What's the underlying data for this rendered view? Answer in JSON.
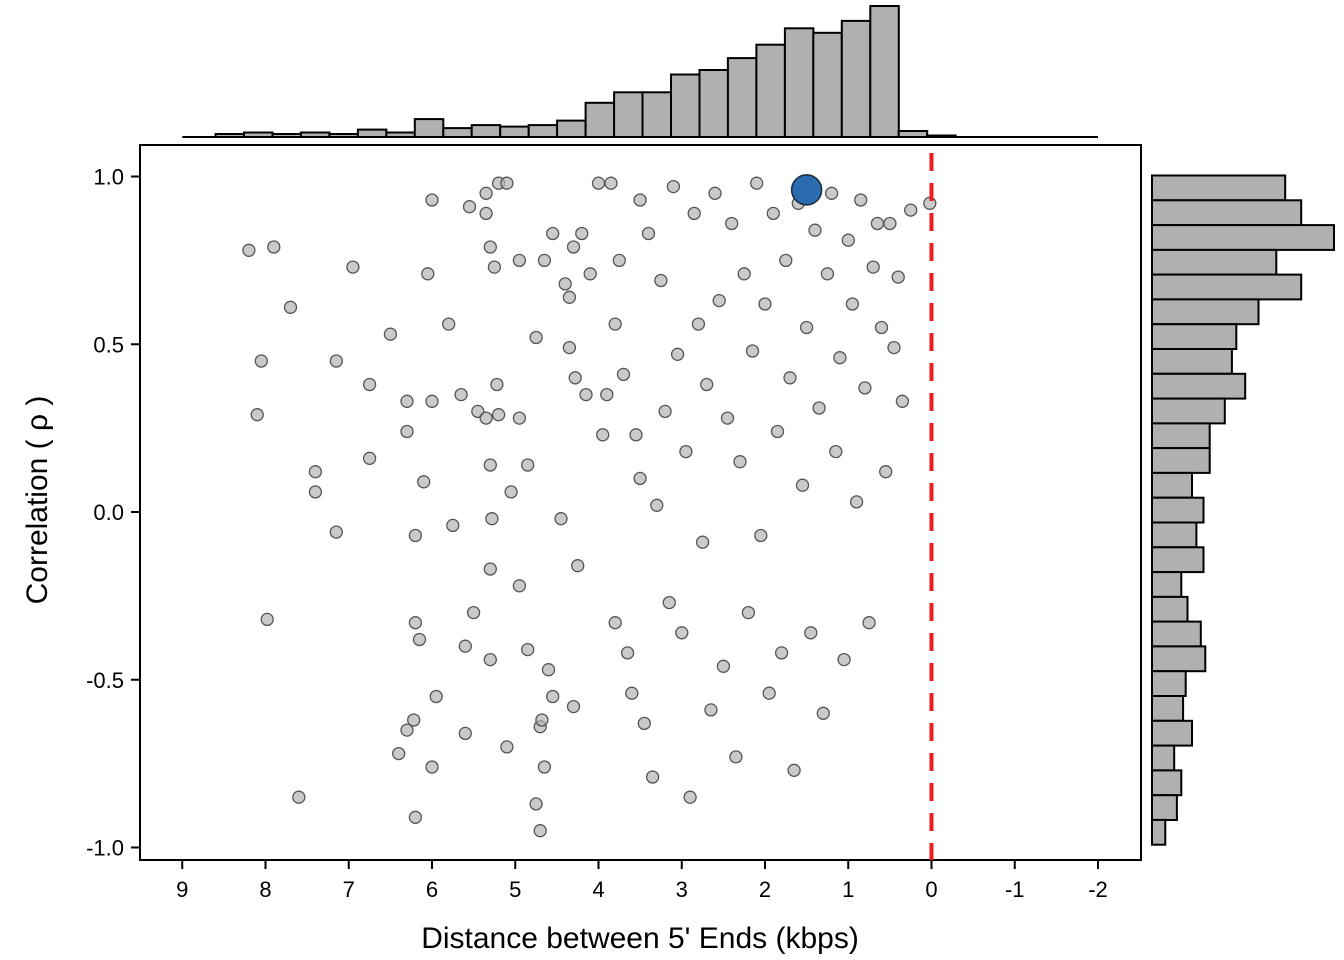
{
  "chart_data": {
    "type": "scatter",
    "title": "",
    "xlabel": "Distance between 5' Ends (kbps)",
    "ylabel": "Correlation ( ρ )",
    "xlim": [
      9.5,
      -2.5
    ],
    "ylim": [
      -1.04,
      1.1
    ],
    "x_reversed": true,
    "x_ticks": [
      9,
      8,
      7,
      6,
      5,
      4,
      3,
      2,
      1,
      0,
      -1,
      -2
    ],
    "x_tick_labels": [
      "9",
      "8",
      "7",
      "6",
      "5",
      "4",
      "3",
      "2",
      "1",
      "0",
      "-1",
      "-2"
    ],
    "y_ticks": [
      1.0,
      0.5,
      0.0,
      -0.5,
      -1.0
    ],
    "y_tick_labels": [
      "1.0",
      "0.5",
      "0.0",
      "-0.5",
      "-1.0"
    ],
    "reference_line": {
      "x": 0,
      "color": "#ee1c1c",
      "style": "dashed"
    },
    "highlight_point": {
      "x": 1.5,
      "y": 0.96,
      "color": "#2b6cb0"
    },
    "point_color": "#b4b4b4",
    "bar_color": "#b0b0b0",
    "grid": false,
    "legend": "none",
    "points_sample": [
      [
        8.2,
        0.78
      ],
      [
        7.9,
        0.79
      ],
      [
        7.7,
        0.61
      ],
      [
        8.05,
        0.45
      ],
      [
        8.1,
        0.29
      ],
      [
        7.98,
        -0.32
      ],
      [
        7.6,
        -0.85
      ],
      [
        7.4,
        0.12
      ],
      [
        7.4,
        0.06
      ],
      [
        7.15,
        0.45
      ],
      [
        7.15,
        -0.06
      ],
      [
        6.95,
        0.73
      ],
      [
        6.75,
        0.38
      ],
      [
        6.75,
        0.16
      ],
      [
        6.5,
        0.53
      ],
      [
        6.4,
        -0.72
      ],
      [
        6.3,
        -0.65
      ],
      [
        6.3,
        0.33
      ],
      [
        6.3,
        0.24
      ],
      [
        6.22,
        -0.62
      ],
      [
        6.2,
        -0.33
      ],
      [
        6.2,
        -0.91
      ],
      [
        6.2,
        -0.07
      ],
      [
        6.15,
        -0.38
      ],
      [
        6.1,
        0.09
      ],
      [
        6.05,
        0.71
      ],
      [
        6.0,
        0.93
      ],
      [
        6.0,
        0.33
      ],
      [
        6.0,
        -0.76
      ],
      [
        5.95,
        -0.55
      ],
      [
        5.8,
        0.56
      ],
      [
        5.75,
        -0.04
      ],
      [
        5.65,
        0.35
      ],
      [
        5.6,
        -0.66
      ],
      [
        5.6,
        -0.4
      ],
      [
        5.55,
        0.91
      ],
      [
        5.5,
        -0.3
      ],
      [
        5.45,
        0.3
      ],
      [
        5.35,
        0.28
      ],
      [
        5.35,
        0.95
      ],
      [
        5.35,
        0.89
      ],
      [
        5.3,
        0.79
      ],
      [
        5.3,
        -0.44
      ],
      [
        5.3,
        -0.17
      ],
      [
        5.3,
        0.14
      ],
      [
        5.28,
        -0.02
      ],
      [
        5.25,
        0.73
      ],
      [
        5.22,
        0.38
      ],
      [
        5.2,
        0.29
      ],
      [
        5.2,
        0.98
      ],
      [
        5.1,
        0.98
      ],
      [
        5.1,
        -0.7
      ],
      [
        5.05,
        0.06
      ],
      [
        4.95,
        0.75
      ],
      [
        4.95,
        0.28
      ],
      [
        4.95,
        -0.22
      ],
      [
        4.85,
        -0.41
      ],
      [
        4.85,
        0.14
      ],
      [
        4.75,
        0.52
      ],
      [
        4.75,
        -0.87
      ],
      [
        4.7,
        -0.64
      ],
      [
        4.7,
        -0.95
      ],
      [
        4.68,
        -0.62
      ],
      [
        4.65,
        -0.76
      ],
      [
        4.65,
        0.75
      ],
      [
        4.6,
        -0.47
      ],
      [
        4.55,
        0.83
      ],
      [
        4.55,
        -0.55
      ],
      [
        4.45,
        -0.02
      ],
      [
        4.4,
        0.68
      ],
      [
        4.35,
        0.64
      ],
      [
        4.35,
        0.49
      ],
      [
        4.3,
        -0.58
      ],
      [
        4.3,
        0.79
      ],
      [
        4.28,
        0.4
      ],
      [
        4.25,
        -0.16
      ],
      [
        4.2,
        0.83
      ],
      [
        4.15,
        0.35
      ],
      [
        4.1,
        0.71
      ],
      [
        4.0,
        0.98
      ],
      [
        3.95,
        0.23
      ],
      [
        3.9,
        0.35
      ],
      [
        3.85,
        0.98
      ],
      [
        3.8,
        -0.33
      ],
      [
        3.8,
        0.56
      ],
      [
        3.75,
        0.75
      ],
      [
        3.7,
        0.41
      ],
      [
        3.65,
        -0.42
      ],
      [
        3.6,
        -0.54
      ],
      [
        3.55,
        0.23
      ],
      [
        3.5,
        0.93
      ],
      [
        3.5,
        0.1
      ],
      [
        3.45,
        -0.63
      ],
      [
        3.4,
        0.83
      ],
      [
        3.35,
        -0.79
      ],
      [
        3.3,
        0.02
      ],
      [
        3.25,
        0.69
      ],
      [
        3.2,
        0.3
      ],
      [
        3.15,
        -0.27
      ],
      [
        3.1,
        0.97
      ],
      [
        3.05,
        0.47
      ],
      [
        3.0,
        -0.36
      ],
      [
        2.95,
        0.18
      ],
      [
        2.9,
        -0.85
      ],
      [
        2.85,
        0.89
      ],
      [
        2.8,
        0.56
      ],
      [
        2.75,
        -0.09
      ],
      [
        2.7,
        0.38
      ],
      [
        2.65,
        -0.59
      ],
      [
        2.6,
        0.95
      ],
      [
        2.55,
        0.63
      ],
      [
        2.5,
        -0.46
      ],
      [
        2.45,
        0.28
      ],
      [
        2.4,
        0.86
      ],
      [
        2.35,
        -0.73
      ],
      [
        2.3,
        0.15
      ],
      [
        2.25,
        0.71
      ],
      [
        2.2,
        -0.3
      ],
      [
        2.15,
        0.48
      ],
      [
        2.1,
        0.98
      ],
      [
        2.05,
        -0.07
      ],
      [
        2.0,
        0.62
      ],
      [
        1.95,
        -0.54
      ],
      [
        1.9,
        0.89
      ],
      [
        1.85,
        0.24
      ],
      [
        1.8,
        -0.42
      ],
      [
        1.75,
        0.75
      ],
      [
        1.7,
        0.4
      ],
      [
        1.65,
        -0.77
      ],
      [
        1.6,
        0.92
      ],
      [
        1.55,
        0.08
      ],
      [
        1.5,
        0.55
      ],
      [
        1.45,
        -0.36
      ],
      [
        1.4,
        0.84
      ],
      [
        1.35,
        0.31
      ],
      [
        1.3,
        -0.6
      ],
      [
        1.25,
        0.71
      ],
      [
        1.2,
        0.95
      ],
      [
        1.15,
        0.18
      ],
      [
        1.1,
        0.46
      ],
      [
        1.05,
        -0.44
      ],
      [
        1.0,
        0.81
      ],
      [
        0.95,
        0.62
      ],
      [
        0.9,
        0.03
      ],
      [
        0.85,
        0.93
      ],
      [
        0.8,
        0.37
      ],
      [
        0.75,
        -0.33
      ],
      [
        0.7,
        0.73
      ],
      [
        0.65,
        0.86
      ],
      [
        0.6,
        0.55
      ],
      [
        0.55,
        0.12
      ],
      [
        0.5,
        0.86
      ],
      [
        0.45,
        0.49
      ],
      [
        0.4,
        0.7
      ],
      [
        0.35,
        0.33
      ],
      [
        0.25,
        0.9
      ],
      [
        0.02,
        0.92
      ]
    ],
    "top_histogram": {
      "bins_start_to_end": [
        8.6,
        -2.0
      ],
      "counts": [
        2,
        3,
        2,
        3,
        2,
        5,
        3,
        12,
        6,
        8,
        7,
        8,
        11,
        23,
        30,
        30,
        42,
        45,
        53,
        62,
        73,
        70,
        78,
        88,
        4,
        1,
        0,
        0,
        0,
        0,
        0
      ]
    },
    "right_histogram": {
      "bins_top_to_bottom": [
        1.0,
        -0.95
      ],
      "counts": [
        150,
        168,
        205,
        140,
        168,
        120,
        95,
        90,
        105,
        82,
        65,
        65,
        45,
        58,
        50,
        58,
        33,
        40,
        55,
        60,
        38,
        35,
        45,
        25,
        33,
        28,
        15
      ]
    }
  }
}
